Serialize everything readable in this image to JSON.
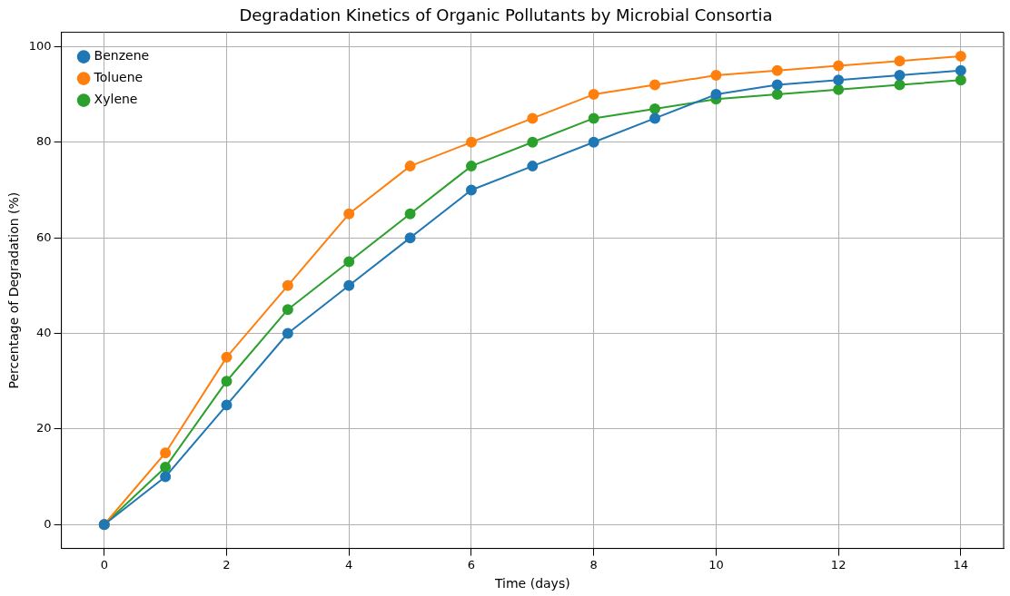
{
  "chart_data": {
    "type": "line",
    "title": "Degradation Kinetics of Organic Pollutants by Microbial Consortia",
    "xlabel": "Time (days)",
    "ylabel": "Percentage of Degradation (%)",
    "x": [
      0,
      1,
      2,
      3,
      4,
      5,
      6,
      7,
      8,
      9,
      10,
      11,
      12,
      13,
      14
    ],
    "series": [
      {
        "name": "Benzene",
        "color": "#1f77b4",
        "values": [
          0,
          10,
          25,
          40,
          50,
          60,
          70,
          75,
          80,
          85,
          90,
          92,
          93,
          94,
          95
        ]
      },
      {
        "name": "Toluene",
        "color": "#ff7f0e",
        "values": [
          0,
          15,
          35,
          50,
          65,
          75,
          80,
          85,
          90,
          92,
          94,
          95,
          96,
          97,
          98
        ]
      },
      {
        "name": "Xylene",
        "color": "#2ca02c",
        "values": [
          0,
          12,
          30,
          45,
          55,
          65,
          75,
          80,
          85,
          87,
          89,
          90,
          91,
          92,
          93
        ]
      }
    ],
    "xlim": [
      -0.7,
      14.7
    ],
    "xticks": [
      0,
      2,
      4,
      6,
      8,
      10,
      12,
      14
    ],
    "ylim": [
      -5,
      103
    ],
    "yticks": [
      0,
      20,
      40,
      60,
      80,
      100
    ],
    "grid": true,
    "legend": "top left",
    "marker": "circle",
    "line_style": "solid"
  }
}
